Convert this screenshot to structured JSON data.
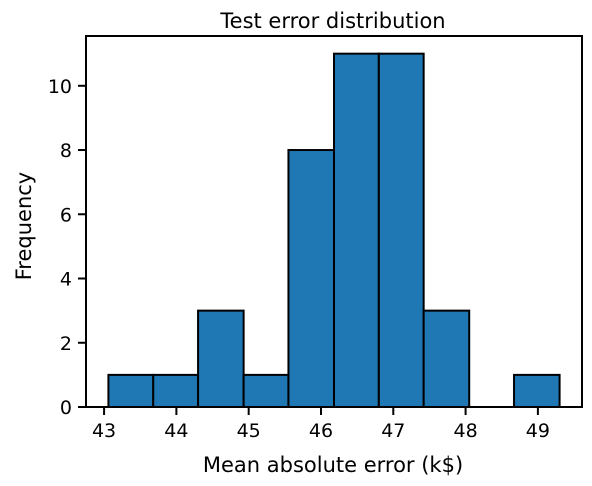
{
  "chart_data": {
    "type": "bar",
    "title": "Test error distribution",
    "xlabel": "Mean absolute error (k$)",
    "ylabel": "Frequency",
    "bins": [
      {
        "x0": 43.06,
        "x1": 43.68,
        "count": 1
      },
      {
        "x0": 43.68,
        "x1": 44.3,
        "count": 1
      },
      {
        "x0": 44.3,
        "x1": 44.93,
        "count": 3
      },
      {
        "x0": 44.93,
        "x1": 45.55,
        "count": 1
      },
      {
        "x0": 45.55,
        "x1": 46.18,
        "count": 8
      },
      {
        "x0": 46.18,
        "x1": 46.8,
        "count": 11
      },
      {
        "x0": 46.8,
        "x1": 47.42,
        "count": 11
      },
      {
        "x0": 47.42,
        "x1": 48.05,
        "count": 3
      },
      {
        "x0": 48.05,
        "x1": 48.67,
        "count": 0
      },
      {
        "x0": 48.67,
        "x1": 49.3,
        "count": 1
      }
    ],
    "xlim": [
      42.75,
      49.61
    ],
    "ylim": [
      0,
      11.55
    ],
    "xticks": [
      43,
      44,
      45,
      46,
      47,
      48,
      49
    ],
    "yticks": [
      0,
      2,
      4,
      6,
      8,
      10
    ],
    "bar_color": "#1f77b4",
    "edge_color": "#000000",
    "grid": false,
    "legend": "none"
  }
}
